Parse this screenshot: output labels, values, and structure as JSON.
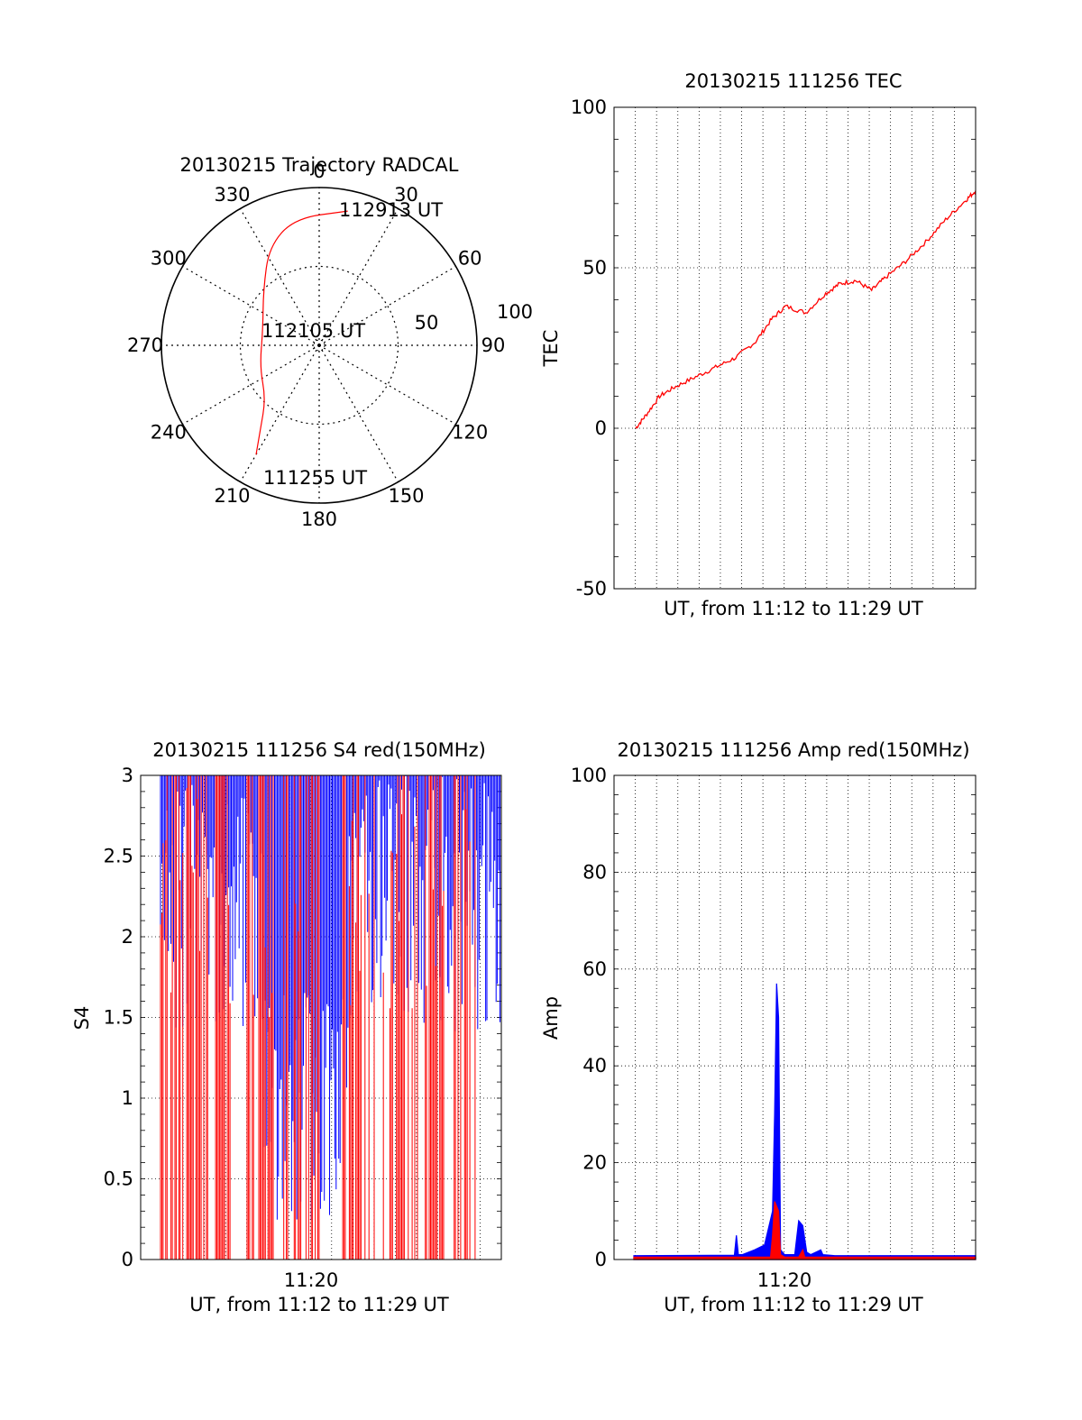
{
  "chart_data": [
    {
      "type": "polar",
      "title": "20130215 Trajectory RADCAL",
      "azimuth_labels": [
        "0",
        "30",
        "60",
        "90",
        "120",
        "150",
        "180",
        "210",
        "240",
        "270",
        "300",
        "330"
      ],
      "radial_labels": [
        "50",
        "100"
      ],
      "radial_range": [
        0,
        100
      ],
      "series": [
        {
          "color": "#ff0000",
          "points": [
            {
              "az": 210,
              "r": 80
            },
            {
              "az": 215,
              "r": 65
            },
            {
              "az": 225,
              "r": 48
            },
            {
              "az": 250,
              "r": 40
            },
            {
              "az": 285,
              "r": 37
            },
            {
              "az": 315,
              "r": 50
            },
            {
              "az": 333,
              "r": 70
            },
            {
              "az": 349,
              "r": 82
            },
            {
              "az": 12,
              "r": 87
            }
          ]
        }
      ],
      "annotations": [
        "112913 UT",
        "112105 UT",
        "111255 UT"
      ]
    },
    {
      "type": "line",
      "title": "20130215 111256 TEC",
      "ylabel": "TEC",
      "xlabel": "UT, from 11:12 to 11:29 UT",
      "ylim": [
        -50,
        100
      ],
      "y_ticks": [
        "-50",
        "0",
        "50",
        "100"
      ],
      "xlim": [
        0,
        17
      ],
      "series": [
        {
          "color": "#ff0000",
          "x": [
            0,
            0.5,
            1.2,
            2,
            3,
            4,
            5,
            6,
            6.8,
            7.5,
            8.5,
            9.5,
            10.2,
            11,
            11.8,
            12.5,
            13.5,
            14.5,
            15.5,
            16.5,
            17
          ],
          "y": [
            0,
            4,
            10,
            13,
            16,
            19,
            22,
            27,
            34,
            38,
            36,
            42,
            45,
            46,
            43,
            47,
            52,
            58,
            65,
            71,
            74
          ]
        }
      ]
    },
    {
      "type": "line",
      "title": "20130215 111256 S4 red(150MHz)",
      "ylabel": "S4",
      "xlabel": "UT, from 11:12 to 11:29 UT",
      "x_tick_labels": [
        "11:20"
      ],
      "ylim": [
        0,
        3
      ],
      "y_ticks": [
        "0",
        "0.5",
        "1",
        "1.5",
        "2",
        "2.5",
        "3"
      ],
      "xlim": [
        0,
        17
      ],
      "series": [
        {
          "color": "#0000ff",
          "description_level_range": [
            0.2,
            3
          ]
        },
        {
          "color": "#ff0000",
          "description_level_range": [
            0,
            3
          ]
        }
      ]
    },
    {
      "type": "line",
      "title": "20130215 111256 Amp red(150MHz)",
      "ylabel": "Amp",
      "xlabel": "UT, from 11:12 to 11:29 UT",
      "x_tick_labels": [
        "11:20"
      ],
      "ylim": [
        0,
        100
      ],
      "y_ticks": [
        "0",
        "20",
        "40",
        "60",
        "80",
        "100"
      ],
      "xlim": [
        0,
        17
      ],
      "series": [
        {
          "color": "#0000ff",
          "x": [
            0,
            5,
            5.1,
            5.2,
            5.4,
            6,
            6.5,
            6.9,
            7.0,
            7.1,
            7.2,
            7.3,
            7.5,
            8.0,
            8.2,
            8.4,
            8.6,
            8.8,
            9.3,
            9.4,
            10,
            17
          ],
          "y": [
            0.8,
            0.9,
            5,
            1,
            1,
            2,
            3,
            10,
            30,
            57,
            50,
            2,
            1,
            1,
            8,
            7,
            1.5,
            1,
            2,
            1,
            0.8,
            0.8
          ]
        },
        {
          "color": "#ff0000",
          "x": [
            0,
            6.8,
            6.9,
            7.0,
            7.1,
            7.2,
            7.3,
            7.5,
            8.2,
            8.4,
            8.5,
            17
          ],
          "y": [
            0.5,
            0.5,
            5,
            12,
            11,
            10,
            1,
            0.5,
            0.5,
            2,
            0.5,
            0.5
          ]
        }
      ]
    }
  ]
}
